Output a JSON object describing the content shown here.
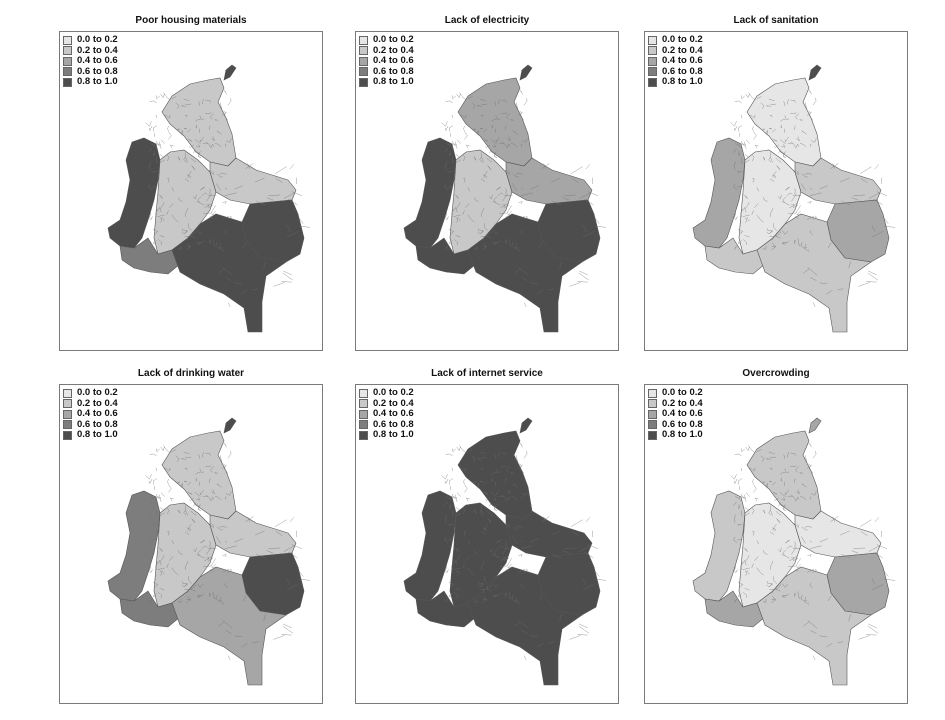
{
  "legend": {
    "classes": [
      {
        "label": "0.0 to 0.2",
        "color": "#e6e6e6"
      },
      {
        "label": "0.2 to 0.4",
        "color": "#c8c8c8"
      },
      {
        "label": "0.4 to 0.6",
        "color": "#a6a6a6"
      },
      {
        "label": "0.6 to 0.8",
        "color": "#7d7d7d"
      },
      {
        "label": "0.8 to 1.0",
        "color": "#4d4d4d"
      }
    ]
  },
  "panels": [
    {
      "title": "Poor housing materials",
      "regions": {
        "north": 1,
        "coast": 4,
        "andes": 1,
        "llanos": 1,
        "east": 4,
        "amazon": 4,
        "southwest": 3,
        "guajira": 4
      }
    },
    {
      "title": "Lack of electricity",
      "regions": {
        "north": 2,
        "coast": 4,
        "andes": 1,
        "llanos": 2,
        "east": 4,
        "amazon": 4,
        "southwest": 4,
        "guajira": 4
      }
    },
    {
      "title": "Lack of sanitation",
      "regions": {
        "north": 0,
        "coast": 2,
        "andes": 0,
        "llanos": 1,
        "east": 2,
        "amazon": 1,
        "southwest": 1,
        "guajira": 4
      }
    },
    {
      "title": "Lack of drinking water",
      "regions": {
        "north": 1,
        "coast": 3,
        "andes": 1,
        "llanos": 1,
        "east": 4,
        "amazon": 2,
        "southwest": 3,
        "guajira": 4
      }
    },
    {
      "title": "Lack of internet service",
      "regions": {
        "north": 4,
        "coast": 4,
        "andes": 4,
        "llanos": 4,
        "east": 4,
        "amazon": 4,
        "southwest": 4,
        "guajira": 4
      }
    },
    {
      "title": "Overcrowding",
      "regions": {
        "north": 1,
        "coast": 1,
        "andes": 0,
        "llanos": 0,
        "east": 2,
        "amazon": 1,
        "southwest": 2,
        "guajira": 2
      }
    }
  ]
}
